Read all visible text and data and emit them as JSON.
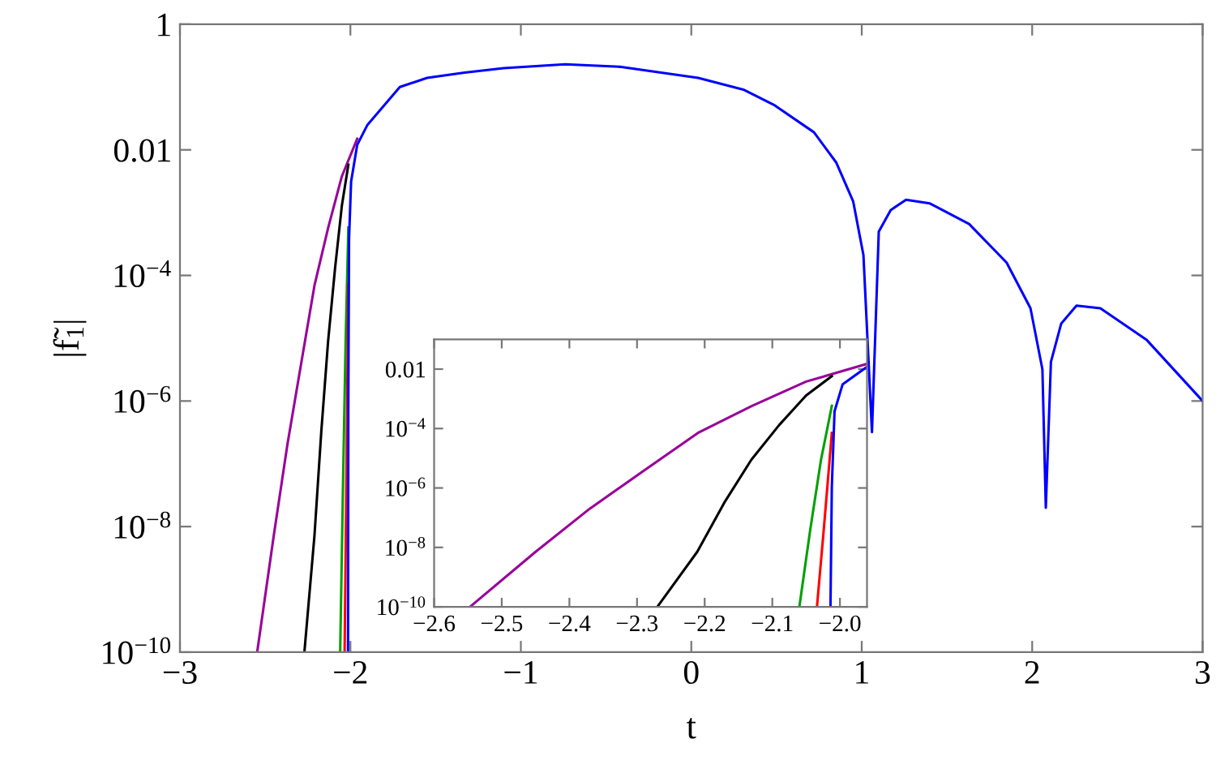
{
  "chart_data": [
    {
      "type": "line",
      "xlabel": "t",
      "ylabel": "|f̃$_{1}$|",
      "log": "y",
      "grid": false,
      "xlim": [
        -3,
        3
      ],
      "ylim": [
        1e-10,
        1
      ],
      "xticks": [
        {
          "value": -3,
          "label": "−3"
        },
        {
          "value": -2,
          "label": "−2"
        },
        {
          "value": -1,
          "label": "−1"
        },
        0,
        1,
        2,
        3
      ],
      "yticks": [
        1,
        0.01,
        {
          "value": 0.0001,
          "label": "10$^{−4}$"
        },
        {
          "value": 1e-06,
          "label": "10$^{−6}$"
        },
        {
          "value": 1e-08,
          "label": "10$^{−8}$"
        },
        {
          "value": 1e-10,
          "label": "10$^{−10}$"
        }
      ],
      "series": [
        {
          "color": "#990099",
          "x": [
            -2.547,
            -2.45,
            -2.37,
            -2.29,
            -2.21,
            -2.13,
            -2.05,
            -1.96
          ],
          "values": [
            1e-10,
            7.1e-09,
            2e-07,
            3.8e-06,
            7.1e-05,
            0.00058,
            0.0038,
            0.015
          ]
        },
        {
          "color": "#000000",
          "x": [
            -2.27,
            -2.211,
            -2.171,
            -2.131,
            -2.09,
            -2.05,
            -2.012
          ],
          "values": [
            1e-10,
            7.1e-09,
            3.2e-07,
            8.9e-06,
            0.00013,
            0.0013,
            0.0058
          ]
        },
        {
          "color": "#00a000",
          "x": [
            -2.06,
            -2.044,
            -2.028,
            -2.012
          ],
          "values": [
            1e-10,
            3.8e-08,
            8.9e-06,
            0.00058
          ]
        },
        {
          "color": "#ff0000",
          "x": [
            -2.034,
            -2.024,
            -2.012
          ],
          "values": [
            1e-10,
            3.8e-08,
            7.1e-05
          ]
        },
        {
          "color": "#0000ff",
          "x": [
            -2.014,
            -2.012,
            -2.008,
            -1.996,
            -1.96,
            -1.9,
            -1.71,
            -1.55,
            -1.33,
            -1.1,
            -0.74,
            -0.42,
            0.04,
            0.31,
            0.49,
            0.72,
            0.85,
            0.95,
            1.01,
            1.06,
            1.1,
            1.17,
            1.26,
            1.4,
            1.63,
            1.85,
            1.99,
            2.06,
            2.08,
            2.11,
            2.17,
            2.26,
            2.4,
            2.67,
            3.0
          ],
          "values": [
            1e-10,
            1.1e-06,
            0.00038,
            0.0031,
            0.012,
            0.025,
            0.1,
            0.14,
            0.17,
            0.2,
            0.23,
            0.21,
            0.14,
            0.09,
            0.051,
            0.019,
            0.0063,
            0.0015,
            0.00021,
            3.2e-07,
            0.0005,
            0.0011,
            0.0016,
            0.0014,
            0.00066,
            0.00016,
            3e-05,
            3.2e-06,
            2e-08,
            4.2e-06,
            1.7e-05,
            3.3e-05,
            3e-05,
            9.5e-06,
            1e-06
          ]
        }
      ]
    },
    {
      "type": "line",
      "log": "y",
      "grid": false,
      "xlim": [
        -2.6,
        -1.96
      ],
      "ylim": [
        1e-10,
        0.1
      ],
      "xticks": [
        {
          "value": -2.6,
          "label": "−2.6"
        },
        {
          "value": -2.5,
          "label": "−2.5"
        },
        {
          "value": -2.4,
          "label": "−2.4"
        },
        {
          "value": -2.3,
          "label": "−2.3"
        },
        {
          "value": -2.2,
          "label": "−2.2"
        },
        {
          "value": -2.1,
          "label": "−2.1"
        },
        {
          "value": -2.0,
          "label": "−2.0"
        }
      ],
      "yticks": [
        0.01,
        {
          "value": 0.0001,
          "label": "10$^{−4}$"
        },
        {
          "value": 1e-06,
          "label": "10$^{−6}$"
        },
        {
          "value": 1e-08,
          "label": "10$^{−8}$"
        },
        {
          "value": 1e-10,
          "label": "10$^{−10}$"
        }
      ],
      "series": [
        {
          "color": "#990099",
          "x": [
            -2.547,
            -2.45,
            -2.37,
            -2.29,
            -2.21,
            -2.13,
            -2.05,
            -1.96
          ],
          "values": [
            1e-10,
            7.1e-09,
            2e-07,
            3.8e-06,
            7.1e-05,
            0.00058,
            0.0038,
            0.015
          ]
        },
        {
          "color": "#000000",
          "x": [
            -2.27,
            -2.211,
            -2.171,
            -2.131,
            -2.09,
            -2.05,
            -2.012
          ],
          "values": [
            1e-10,
            7.1e-09,
            3.2e-07,
            8.9e-06,
            0.00013,
            0.0013,
            0.0058
          ]
        },
        {
          "color": "#00a000",
          "x": [
            -2.06,
            -2.044,
            -2.028,
            -2.012
          ],
          "values": [
            1e-10,
            3.8e-08,
            8.9e-06,
            0.00058
          ]
        },
        {
          "color": "#ff0000",
          "x": [
            -2.034,
            -2.024,
            -2.012
          ],
          "values": [
            1e-10,
            3.8e-08,
            7.1e-05
          ]
        },
        {
          "color": "#0000ff",
          "x": [
            -2.014,
            -2.012,
            -2.008,
            -1.996,
            -1.96
          ],
          "values": [
            1e-10,
            1.1e-06,
            0.00038,
            0.0031,
            0.012
          ]
        }
      ]
    }
  ]
}
